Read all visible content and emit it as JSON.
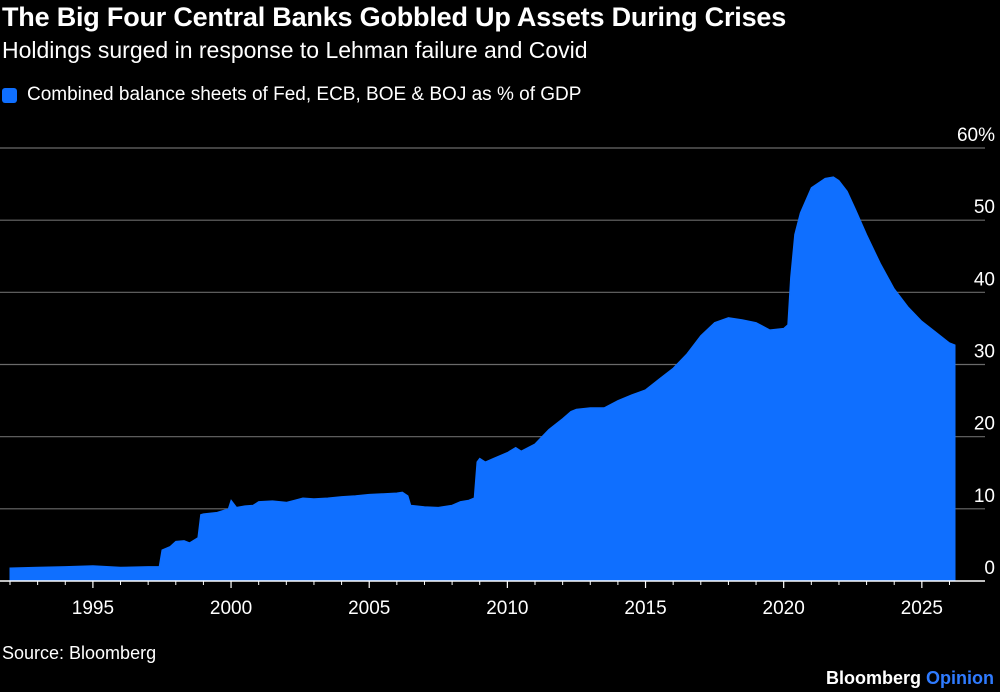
{
  "header": {
    "title": "The Big Four Central Banks Gobbled Up Assets During Crises",
    "subtitle": "Holdings surged in response to Lehman failure and Covid"
  },
  "footer": {
    "source": "Source: Bloomberg",
    "brand_main": "Bloomberg",
    "brand_accent": "Opinion"
  },
  "colors": {
    "series": "#0f6fff",
    "grid": "#6a6a6a",
    "accent": "#2f7bff",
    "background": "#000000"
  },
  "chart_data": {
    "type": "area",
    "title": "The Big Four Central Banks Gobbled Up Assets During Crises",
    "subtitle": "Holdings surged in response to Lehman failure and Covid",
    "xlabel": "",
    "ylabel": "",
    "xlim": [
      1992.0,
      2026.6
    ],
    "ylim": [
      0,
      60
    ],
    "x_ticks": [
      1995,
      2000,
      2005,
      2010,
      2015,
      2020,
      2025
    ],
    "y_ticks": [
      0,
      10,
      20,
      30,
      40,
      50,
      60
    ],
    "y_tick_labels": [
      "0",
      "10",
      "20",
      "30",
      "40",
      "50",
      "60%"
    ],
    "grid": true,
    "legend_position": "top-left",
    "series": [
      {
        "name": "Combined balance sheets of Fed, ECB, BOE & BOJ as % of GDP",
        "x": [
          1992.0,
          1993.0,
          1994.0,
          1995.0,
          1996.0,
          1997.0,
          1997.4,
          1997.5,
          1997.8,
          1998.0,
          1998.3,
          1998.5,
          1998.8,
          1998.9,
          1999.0,
          1999.5,
          1999.9,
          2000.0,
          2000.2,
          2000.5,
          2000.8,
          2001.0,
          2001.5,
          2002.0,
          2002.3,
          2002.6,
          2003.0,
          2003.5,
          2004.0,
          2004.5,
          2005.0,
          2005.5,
          2006.0,
          2006.2,
          2006.4,
          2006.5,
          2007.0,
          2007.5,
          2008.0,
          2008.3,
          2008.6,
          2008.8,
          2008.9,
          2009.0,
          2009.2,
          2009.5,
          2010.0,
          2010.3,
          2010.5,
          2011.0,
          2011.5,
          2012.0,
          2012.3,
          2012.5,
          2013.0,
          2013.5,
          2014.0,
          2014.5,
          2015.0,
          2015.5,
          2016.0,
          2016.5,
          2017.0,
          2017.5,
          2018.0,
          2018.5,
          2019.0,
          2019.5,
          2020.0,
          2020.15,
          2020.25,
          2020.4,
          2020.6,
          2021.0,
          2021.5,
          2021.8,
          2022.0,
          2022.3,
          2022.6,
          2023.0,
          2023.5,
          2024.0,
          2024.5,
          2025.0,
          2025.5,
          2026.0,
          2026.2
        ],
        "values": [
          1.8,
          1.9,
          2.0,
          2.1,
          1.9,
          2.0,
          2.0,
          4.3,
          4.8,
          5.5,
          5.6,
          5.3,
          6.0,
          9.2,
          9.3,
          9.5,
          10.0,
          11.2,
          10.2,
          10.4,
          10.5,
          11.0,
          11.1,
          10.9,
          11.2,
          11.5,
          11.4,
          11.5,
          11.7,
          11.8,
          12.0,
          12.1,
          12.2,
          12.3,
          11.8,
          10.5,
          10.3,
          10.2,
          10.5,
          11.0,
          11.2,
          11.5,
          16.5,
          17.0,
          16.5,
          17.0,
          17.8,
          18.5,
          18.0,
          19.0,
          21.0,
          22.5,
          23.5,
          23.8,
          24.0,
          24.0,
          25.0,
          25.8,
          26.5,
          28.0,
          29.5,
          31.5,
          34.0,
          35.8,
          36.5,
          36.2,
          35.8,
          34.8,
          35.0,
          35.5,
          42.0,
          48.0,
          51.0,
          54.5,
          55.8,
          56.0,
          55.5,
          54.0,
          51.5,
          48.0,
          44.0,
          40.5,
          38.0,
          36.0,
          34.5,
          33.0,
          32.7
        ]
      }
    ]
  }
}
